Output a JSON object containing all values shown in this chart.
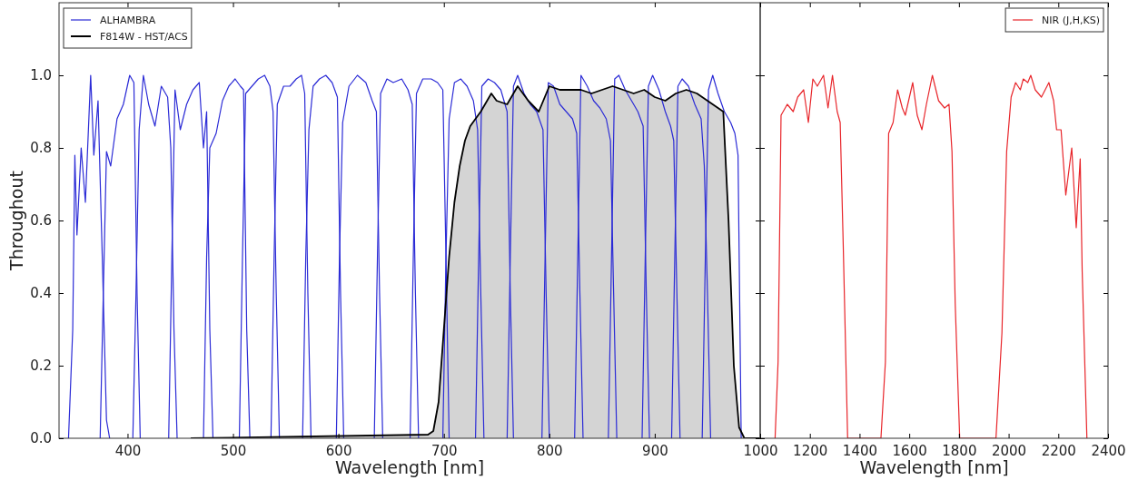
{
  "chart_data": [
    {
      "type": "line",
      "xlabel": "Wavelength [nm]",
      "ylabel": "Throughout",
      "xlim": [
        335,
        1000
      ],
      "ylim": [
        0,
        1.2
      ],
      "xticks": [
        400,
        500,
        600,
        700,
        800,
        900
      ],
      "yticks": [
        {
          "value": 0,
          "label": "0.0"
        },
        {
          "value": 0.2,
          "label": "0.2"
        },
        {
          "value": 0.4,
          "label": "0.4"
        },
        {
          "value": 0.6,
          "label": "0.6"
        },
        {
          "value": 0.8,
          "label": "0.8"
        },
        {
          "value": 1,
          "label": "1.0"
        }
      ],
      "legend": "top left",
      "series": [
        {
          "name": "ALHAMBRA",
          "color": "#2b2bd6",
          "x": [
            344,
            348,
            350,
            352,
            356,
            360,
            365,
            368,
            372,
            376,
            380,
            383
          ],
          "values": [
            0,
            0.3,
            0.78,
            0.56,
            0.8,
            0.65,
            1.0,
            0.78,
            0.93,
            0.5,
            0.05,
            0
          ]
        },
        {
          "color": "#2b2bd6",
          "x": [
            374,
            377,
            380,
            384,
            390,
            396,
            402,
            406,
            409,
            412
          ],
          "values": [
            0,
            0.4,
            0.79,
            0.75,
            0.88,
            0.92,
            1.0,
            0.98,
            0.4,
            0
          ]
        },
        {
          "color": "#2b2bd6",
          "x": [
            405,
            408,
            411,
            415,
            420,
            426,
            432,
            438,
            441,
            444,
            447
          ],
          "values": [
            0,
            0.4,
            0.85,
            1.0,
            0.92,
            0.86,
            0.97,
            0.94,
            0.8,
            0.3,
            0
          ]
        },
        {
          "color": "#2b2bd6",
          "x": [
            439,
            442,
            445,
            450,
            456,
            462,
            468,
            472,
            475,
            478,
            481
          ],
          "values": [
            0,
            0.5,
            0.96,
            0.85,
            0.92,
            0.96,
            0.98,
            0.8,
            0.9,
            0.3,
            0
          ]
        },
        {
          "color": "#2b2bd6",
          "x": [
            472,
            475,
            478,
            484,
            490,
            496,
            502,
            507,
            510,
            513,
            516
          ],
          "values": [
            0,
            0.5,
            0.8,
            0.84,
            0.93,
            0.97,
            0.99,
            0.97,
            0.96,
            0.3,
            0
          ]
        },
        {
          "color": "#2b2bd6",
          "x": [
            506,
            509,
            512,
            518,
            524,
            530,
            535,
            538,
            541,
            544
          ],
          "values": [
            0,
            0.5,
            0.95,
            0.97,
            0.99,
            1.0,
            0.97,
            0.9,
            0.4,
            0
          ]
        },
        {
          "color": "#2b2bd6",
          "x": [
            536,
            539,
            542,
            548,
            554,
            560,
            565,
            568,
            571,
            574
          ],
          "values": [
            0,
            0.5,
            0.92,
            0.97,
            0.97,
            0.99,
            1.0,
            0.95,
            0.4,
            0
          ]
        },
        {
          "color": "#2b2bd6",
          "x": [
            566,
            569,
            572,
            576,
            582,
            588,
            594,
            599,
            602,
            605
          ],
          "values": [
            0,
            0.5,
            0.85,
            0.97,
            0.99,
            1.0,
            0.98,
            0.94,
            0.4,
            0
          ]
        },
        {
          "color": "#2b2bd6",
          "x": [
            598,
            601,
            604,
            610,
            618,
            626,
            632,
            636,
            639,
            642
          ],
          "values": [
            0,
            0.5,
            0.87,
            0.97,
            1.0,
            0.98,
            0.93,
            0.9,
            0.4,
            0
          ]
        },
        {
          "color": "#2b2bd6",
          "x": [
            634,
            637,
            640,
            646,
            652,
            660,
            666,
            670,
            673,
            676
          ],
          "values": [
            0,
            0.5,
            0.95,
            0.99,
            0.98,
            0.99,
            0.96,
            0.92,
            0.4,
            0
          ]
        },
        {
          "color": "#2b2bd6",
          "x": [
            668,
            671,
            674,
            680,
            688,
            694,
            699,
            702,
            705
          ],
          "values": [
            0,
            0.5,
            0.95,
            0.99,
            0.99,
            0.98,
            0.96,
            0.5,
            0
          ]
        },
        {
          "color": "#2b2bd6",
          "x": [
            699,
            702,
            705,
            710,
            716,
            722,
            728,
            732,
            735,
            738
          ],
          "values": [
            0,
            0.5,
            0.88,
            0.98,
            0.99,
            0.97,
            0.93,
            0.85,
            0.4,
            0
          ]
        },
        {
          "color": "#2b2bd6",
          "x": [
            730,
            733,
            736,
            742,
            748,
            754,
            760,
            763,
            766
          ],
          "values": [
            0,
            0.5,
            0.97,
            0.99,
            0.98,
            0.96,
            0.9,
            0.4,
            0
          ]
        },
        {
          "color": "#2b2bd6",
          "x": [
            760,
            763,
            766,
            770,
            776,
            782,
            788,
            794,
            797,
            800
          ],
          "values": [
            0,
            0.5,
            0.97,
            1.0,
            0.95,
            0.92,
            0.9,
            0.85,
            0.4,
            0
          ]
        },
        {
          "color": "#2b2bd6",
          "x": [
            793,
            796,
            799,
            804,
            810,
            816,
            822,
            826,
            829,
            832
          ],
          "values": [
            0,
            0.5,
            0.98,
            0.97,
            0.92,
            0.9,
            0.88,
            0.84,
            0.4,
            0
          ]
        },
        {
          "color": "#2b2bd6",
          "x": [
            824,
            827,
            830,
            836,
            842,
            848,
            854,
            858,
            861,
            864
          ],
          "values": [
            0,
            0.5,
            1.0,
            0.97,
            0.93,
            0.91,
            0.88,
            0.82,
            0.4,
            0
          ]
        },
        {
          "color": "#2b2bd6",
          "x": [
            856,
            859,
            862,
            866,
            872,
            878,
            884,
            889,
            892,
            895
          ],
          "values": [
            0,
            0.5,
            0.99,
            1.0,
            0.96,
            0.93,
            0.9,
            0.86,
            0.4,
            0
          ]
        },
        {
          "color": "#2b2bd6",
          "x": [
            888,
            891,
            894,
            898,
            904,
            910,
            915,
            918,
            921,
            924
          ],
          "values": [
            0,
            0.5,
            0.97,
            1.0,
            0.96,
            0.9,
            0.86,
            0.82,
            0.4,
            0
          ]
        },
        {
          "color": "#2b2bd6",
          "x": [
            916,
            919,
            922,
            926,
            932,
            938,
            944,
            947,
            950,
            953
          ],
          "values": [
            0,
            0.5,
            0.97,
            0.99,
            0.97,
            0.92,
            0.88,
            0.75,
            0.4,
            0
          ]
        },
        {
          "color": "#2b2bd6",
          "x": [
            945,
            948,
            951,
            955,
            960,
            966,
            972,
            976,
            979,
            982
          ],
          "values": [
            0,
            0.5,
            0.96,
            1.0,
            0.95,
            0.9,
            0.87,
            0.84,
            0.78,
            0
          ]
        },
        {
          "name": "F814W - HST/ACS",
          "type": "area",
          "color": "#000000",
          "x": [
            460,
            685,
            690,
            695,
            700,
            705,
            710,
            715,
            720,
            725,
            735,
            745,
            750,
            760,
            770,
            780,
            790,
            800,
            810,
            820,
            830,
            840,
            850,
            860,
            870,
            880,
            890,
            900,
            910,
            920,
            930,
            940,
            950,
            960,
            965,
            970,
            975,
            980,
            985,
            1000
          ],
          "values": [
            0,
            0.01,
            0.02,
            0.1,
            0.3,
            0.5,
            0.65,
            0.75,
            0.82,
            0.86,
            0.9,
            0.95,
            0.93,
            0.92,
            0.97,
            0.93,
            0.9,
            0.97,
            0.96,
            0.96,
            0.96,
            0.95,
            0.96,
            0.97,
            0.96,
            0.95,
            0.96,
            0.94,
            0.93,
            0.95,
            0.96,
            0.95,
            0.93,
            0.91,
            0.9,
            0.6,
            0.2,
            0.03,
            0,
            0
          ]
        }
      ]
    },
    {
      "type": "line",
      "xlabel": "Wavelength [nm]",
      "xlim": [
        1000,
        2400
      ],
      "ylim": [
        0,
        1.2
      ],
      "xticks": [
        1000,
        1200,
        1400,
        1600,
        1800,
        2000,
        2200,
        2400
      ],
      "yticks": [
        {
          "value": 0,
          "label": null
        },
        {
          "value": 0.2,
          "label": null
        },
        {
          "value": 0.4,
          "label": null
        },
        {
          "value": 0.6,
          "label": null
        },
        {
          "value": 0.8,
          "label": null
        },
        {
          "value": 1,
          "label": null
        }
      ],
      "tick_labels": "x",
      "legend": "top right",
      "series": [
        {
          "name": "NIR (J,H,KS)",
          "color": "#e8262b",
          "x": [
            1060,
            1072,
            1084,
            1109,
            1133,
            1151,
            1175,
            1194,
            1212,
            1230,
            1255,
            1273,
            1291,
            1310,
            1322,
            1334,
            1352,
            1486,
            1504,
            1517,
            1535,
            1553,
            1572,
            1584,
            1614,
            1632,
            1651,
            1669,
            1693,
            1718,
            1742,
            1760,
            1772,
            1785,
            1803,
            1949,
            1973,
            1992,
            2010,
            2028,
            2047,
            2059,
            2077,
            2089,
            2107,
            2132,
            2162,
            2181,
            2193,
            2211,
            2230,
            2254,
            2272,
            2288,
            2296,
            2315
          ],
          "values": [
            0,
            0.21,
            0.89,
            0.92,
            0.9,
            0.94,
            0.96,
            0.87,
            0.99,
            0.97,
            1.0,
            0.91,
            1.0,
            0.9,
            0.87,
            0.54,
            0,
            0,
            0.21,
            0.84,
            0.87,
            0.96,
            0.91,
            0.89,
            0.98,
            0.89,
            0.85,
            0.92,
            1.0,
            0.93,
            0.91,
            0.92,
            0.79,
            0.37,
            0,
            0,
            0.29,
            0.79,
            0.94,
            0.98,
            0.96,
            0.99,
            0.98,
            1.0,
            0.96,
            0.94,
            0.98,
            0.93,
            0.85,
            0.85,
            0.67,
            0.8,
            0.58,
            0.77,
            0.46,
            0
          ]
        }
      ]
    }
  ]
}
